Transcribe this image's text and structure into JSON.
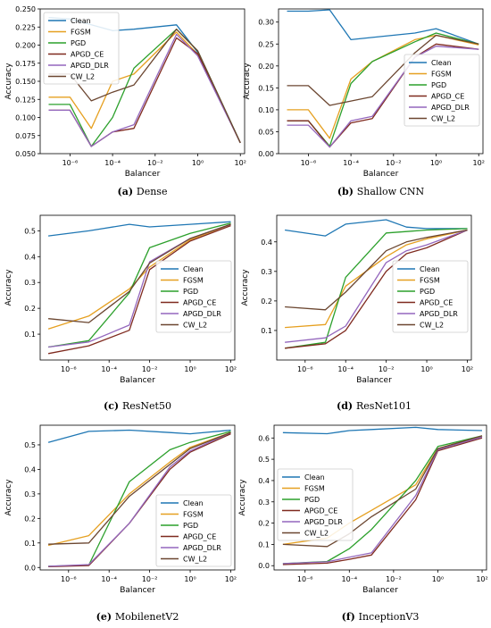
{
  "colors": {
    "Clean": "#1f77b4",
    "FGSM": "#e6a020",
    "PGD": "#2ca02c",
    "APGD_CE": "#7f2a1f",
    "APGD_DLR": "#9467bd",
    "CW_L2": "#6b4630"
  },
  "chart_data": [
    {
      "type": "line",
      "caption_label": "(a)",
      "caption_text": "Dense",
      "xlabel": "Balancer",
      "ylabel": "Accuracy",
      "xscale": "log",
      "x": [
        1e-07,
        1e-06,
        1e-05,
        0.0001,
        0.001,
        0.1,
        1.0,
        100.0
      ],
      "xlim_log10": [
        -7.4,
        2.2
      ],
      "xticks": [
        "10⁻⁶",
        "10⁻⁴",
        "10⁻²",
        "10⁰",
        "10²"
      ],
      "ylim": [
        0.05,
        0.25
      ],
      "yticks": [
        0.05,
        0.075,
        0.1,
        0.125,
        0.15,
        0.175,
        0.2,
        0.225,
        0.25
      ],
      "ytick_format": 3,
      "legend": "top-left",
      "series": [
        {
          "name": "Clean",
          "values": [
            0.238,
            0.236,
            0.228,
            0.22,
            0.222,
            0.228,
            0.19,
            0.065
          ]
        },
        {
          "name": "FGSM",
          "values": [
            0.128,
            0.128,
            0.085,
            0.15,
            0.16,
            0.218,
            0.187,
            0.065
          ]
        },
        {
          "name": "PGD",
          "values": [
            0.118,
            0.118,
            0.06,
            0.1,
            0.168,
            0.222,
            0.192,
            0.065
          ]
        },
        {
          "name": "APGD_CE",
          "values": [
            0.11,
            0.11,
            0.06,
            0.08,
            0.085,
            0.21,
            0.188,
            0.065
          ]
        },
        {
          "name": "APGD_DLR",
          "values": [
            0.11,
            0.11,
            0.06,
            0.08,
            0.09,
            0.215,
            0.185,
            0.065
          ]
        },
        {
          "name": "CW_L2",
          "values": [
            0.16,
            0.16,
            0.123,
            0.135,
            0.145,
            0.222,
            0.192,
            0.065
          ]
        }
      ]
    },
    {
      "type": "line",
      "caption_label": "(b)",
      "caption_text": "Shallow CNN",
      "xlabel": "Balancer",
      "ylabel": "Accuracy",
      "xscale": "log",
      "x": [
        1e-07,
        1e-06,
        1e-05,
        0.0001,
        0.001,
        0.1,
        1.0,
        100.0
      ],
      "xlim_log10": [
        -7.4,
        2.2
      ],
      "xticks": [
        "10⁻⁶",
        "10⁻⁴",
        "10⁻²",
        "10⁰",
        "10²"
      ],
      "ylim": [
        0.0,
        0.33
      ],
      "yticks": [
        0.0,
        0.05,
        0.1,
        0.15,
        0.2,
        0.25,
        0.3
      ],
      "ytick_format": 2,
      "legend": "right",
      "series": [
        {
          "name": "Clean",
          "values": [
            0.325,
            0.325,
            0.328,
            0.26,
            0.265,
            0.275,
            0.285,
            0.25
          ]
        },
        {
          "name": "FGSM",
          "values": [
            0.1,
            0.1,
            0.035,
            0.17,
            0.21,
            0.26,
            0.27,
            0.248
          ]
        },
        {
          "name": "PGD",
          "values": [
            0.075,
            0.075,
            0.017,
            0.16,
            0.21,
            0.255,
            0.275,
            0.25
          ]
        },
        {
          "name": "APGD_CE",
          "values": [
            0.075,
            0.075,
            0.015,
            0.07,
            0.08,
            0.22,
            0.25,
            0.238
          ]
        },
        {
          "name": "APGD_DLR",
          "values": [
            0.065,
            0.065,
            0.015,
            0.075,
            0.085,
            0.22,
            0.245,
            0.238
          ]
        },
        {
          "name": "CW_L2",
          "values": [
            0.155,
            0.155,
            0.11,
            0.12,
            0.13,
            0.23,
            0.27,
            0.25
          ]
        }
      ]
    },
    {
      "type": "line",
      "caption_label": "(c)",
      "caption_text": "ResNet50",
      "xlabel": "Balancer",
      "ylabel": "Accuracy",
      "xscale": "log",
      "x": [
        1e-07,
        1e-05,
        0.001,
        0.01,
        1.0,
        100.0
      ],
      "xlim_log10": [
        -7.4,
        2.2
      ],
      "xticks": [
        "10⁻⁶",
        "10⁻⁴",
        "10⁻²",
        "10⁰",
        "10²"
      ],
      "ylim": [
        0.0,
        0.56
      ],
      "yticks": [
        0.1,
        0.2,
        0.3,
        0.4,
        0.5
      ],
      "ytick_format": 1,
      "legend": "right",
      "series": [
        {
          "name": "Clean",
          "values": [
            0.48,
            0.5,
            0.525,
            0.515,
            0.525,
            0.535
          ]
        },
        {
          "name": "FGSM",
          "values": [
            0.12,
            0.17,
            0.275,
            0.36,
            0.465,
            0.525
          ]
        },
        {
          "name": "PGD",
          "values": [
            0.05,
            0.075,
            0.26,
            0.435,
            0.49,
            0.53
          ]
        },
        {
          "name": "APGD_CE",
          "values": [
            0.025,
            0.055,
            0.115,
            0.35,
            0.46,
            0.52
          ]
        },
        {
          "name": "APGD_DLR",
          "values": [
            0.05,
            0.07,
            0.135,
            0.38,
            0.47,
            0.525
          ]
        },
        {
          "name": "CW_L2",
          "values": [
            0.16,
            0.145,
            0.265,
            0.375,
            0.47,
            0.525
          ]
        }
      ]
    },
    {
      "type": "line",
      "caption_label": "(d)",
      "caption_text": "ResNet101",
      "xlabel": "Balancer",
      "ylabel": "Accuracy",
      "xscale": "log",
      "x": [
        1e-07,
        1e-05,
        0.0001,
        0.01,
        0.1,
        1.0,
        100.0
      ],
      "xlim_log10": [
        -7.4,
        2.2
      ],
      "xticks": [
        "10⁻⁶",
        "10⁻⁴",
        "10⁻²",
        "10⁰",
        "10²"
      ],
      "ylim": [
        0.0,
        0.49
      ],
      "yticks": [
        0.1,
        0.2,
        0.3,
        0.4
      ],
      "ytick_format": 1,
      "legend": "right",
      "series": [
        {
          "name": "Clean",
          "values": [
            0.44,
            0.42,
            0.46,
            0.475,
            0.45,
            0.445,
            0.445
          ]
        },
        {
          "name": "FGSM",
          "values": [
            0.11,
            0.12,
            0.25,
            0.35,
            0.39,
            0.41,
            0.44
          ]
        },
        {
          "name": "PGD",
          "values": [
            0.04,
            0.06,
            0.28,
            0.43,
            0.435,
            0.44,
            0.445
          ]
        },
        {
          "name": "APGD_CE",
          "values": [
            0.04,
            0.055,
            0.1,
            0.3,
            0.36,
            0.38,
            0.44
          ]
        },
        {
          "name": "APGD_DLR",
          "values": [
            0.06,
            0.075,
            0.115,
            0.33,
            0.37,
            0.39,
            0.44
          ]
        },
        {
          "name": "CW_L2",
          "values": [
            0.18,
            0.17,
            0.23,
            0.37,
            0.4,
            0.415,
            0.44
          ]
        }
      ]
    },
    {
      "type": "line",
      "caption_label": "(e)",
      "caption_text": "MobilenetV2",
      "xlabel": "Balancer",
      "ylabel": "Accuracy",
      "xscale": "log",
      "x": [
        1e-07,
        1e-05,
        0.001,
        0.1,
        1.0,
        100.0
      ],
      "xlim_log10": [
        -7.4,
        2.2
      ],
      "xticks": [
        "10⁻⁶",
        "10⁻⁴",
        "10⁻²",
        "10⁰",
        "10²"
      ],
      "ylim": [
        -0.01,
        0.58
      ],
      "yticks": [
        0.0,
        0.1,
        0.2,
        0.3,
        0.4,
        0.5
      ],
      "ytick_format": 1,
      "legend": "bottom-right",
      "series": [
        {
          "name": "Clean",
          "values": [
            0.51,
            0.555,
            0.56,
            0.55,
            0.545,
            0.56
          ]
        },
        {
          "name": "FGSM",
          "values": [
            0.09,
            0.13,
            0.3,
            0.43,
            0.49,
            0.55
          ]
        },
        {
          "name": "PGD",
          "values": [
            0.005,
            0.01,
            0.35,
            0.48,
            0.51,
            0.555
          ]
        },
        {
          "name": "APGD_CE",
          "values": [
            0.003,
            0.008,
            0.18,
            0.4,
            0.47,
            0.545
          ]
        },
        {
          "name": "APGD_DLR",
          "values": [
            0.005,
            0.012,
            0.18,
            0.41,
            0.475,
            0.55
          ]
        },
        {
          "name": "CW_L2",
          "values": [
            0.095,
            0.1,
            0.29,
            0.42,
            0.485,
            0.55
          ]
        }
      ]
    },
    {
      "type": "line",
      "caption_label": "(f)",
      "caption_text": "InceptionV3",
      "xlabel": "Balancer",
      "ylabel": "Accuracy",
      "xscale": "log",
      "x": [
        1e-07,
        1e-05,
        0.0001,
        0.001,
        0.1,
        1.0,
        100.0
      ],
      "xlim_log10": [
        -7.4,
        2.2
      ],
      "xticks": [
        "10⁻⁶",
        "10⁻⁴",
        "10⁻²",
        "10⁰",
        "10²"
      ],
      "ylim": [
        -0.02,
        0.66
      ],
      "yticks": [
        0.0,
        0.1,
        0.2,
        0.3,
        0.4,
        0.5,
        0.6
      ],
      "ytick_format": 1,
      "legend": "left",
      "series": [
        {
          "name": "Clean",
          "values": [
            0.625,
            0.62,
            0.635,
            0.64,
            0.65,
            0.64,
            0.635
          ]
        },
        {
          "name": "FGSM",
          "values": [
            0.1,
            0.13,
            0.2,
            0.26,
            0.38,
            0.55,
            0.61
          ]
        },
        {
          "name": "PGD",
          "values": [
            0.01,
            0.02,
            0.08,
            0.17,
            0.4,
            0.56,
            0.61
          ]
        },
        {
          "name": "APGD_CE",
          "values": [
            0.005,
            0.012,
            0.03,
            0.05,
            0.31,
            0.54,
            0.6
          ]
        },
        {
          "name": "APGD_DLR",
          "values": [
            0.01,
            0.018,
            0.04,
            0.06,
            0.33,
            0.545,
            0.605
          ]
        },
        {
          "name": "CW_L2",
          "values": [
            0.1,
            0.09,
            0.15,
            0.23,
            0.36,
            0.55,
            0.61
          ]
        }
      ]
    }
  ]
}
